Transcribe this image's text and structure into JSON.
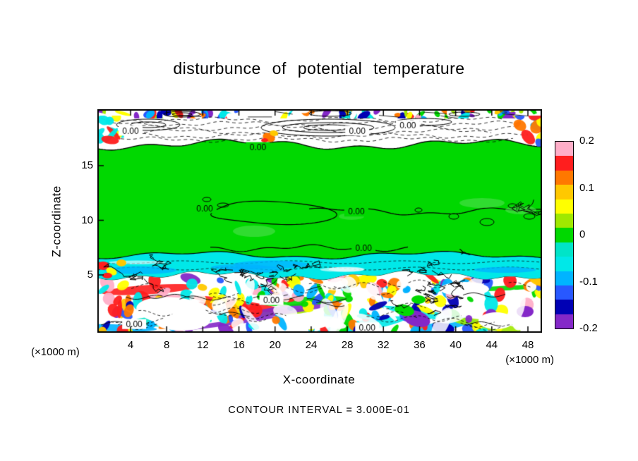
{
  "title": "disturbunce of potential temperature",
  "axes": {
    "x": {
      "label": "X-coordinate",
      "unit": "(×1000 m)",
      "ticks": [
        4,
        8,
        12,
        16,
        20,
        24,
        28,
        32,
        36,
        40,
        44,
        48
      ]
    },
    "z": {
      "label": "Z-coordinate",
      "unit": "(×1000 m)",
      "ticks": [
        15,
        10,
        5
      ]
    }
  },
  "colorbar": {
    "labels": [
      "0.2",
      "0.1",
      "0",
      "-0.1",
      "-0.2"
    ],
    "colors": [
      "#ffaec8",
      "#ff1e1e",
      "#ff7800",
      "#ffc800",
      "#ffff00",
      "#a0e800",
      "#00d800",
      "#00e4c8",
      "#00e8e8",
      "#00b4ff",
      "#2858ff",
      "#0000b4",
      "#8428c8"
    ]
  },
  "contour_note": "CONTOUR INTERVAL = 3.000E-01",
  "contour": {
    "zero_label": "0.00",
    "interval": 0.3
  },
  "chart_data": {
    "type": "heatmap",
    "title": "disturbunce of potential temperature",
    "xlabel": "X-coordinate (×1000 m)",
    "ylabel": "Z-coordinate (×1000 m)",
    "xlim": [
      0,
      50
    ],
    "zlim": [
      0,
      20.3
    ],
    "x_ticks": [
      4,
      8,
      12,
      16,
      20,
      24,
      28,
      32,
      36,
      40,
      44,
      48
    ],
    "z_ticks": [
      5,
      10,
      15
    ],
    "value_name": "potential temperature disturbance",
    "value_range": [
      -0.2,
      0.2
    ],
    "contour_interval": 0.3,
    "colorbar_levels": [
      -0.2,
      -0.1,
      0,
      0.1,
      0.2
    ],
    "regions": [
      {
        "z_range": [
          6.7,
          16.9
        ],
        "value": 0.0,
        "description": "uniform near-zero interior (green) crossed by labelled 0.00 contours"
      },
      {
        "z_range": [
          5.0,
          6.7
        ],
        "value": -0.07,
        "description": "weakly negative (cyan) band spanning the full x range"
      },
      {
        "z_range": [
          0.0,
          5.0
        ],
        "value_range": [
          -0.2,
          0.2
        ],
        "description": "turbulent lower boundary layer with alternating positive/negative cells and dense contour packets"
      },
      {
        "z_range": [
          16.9,
          19.4
        ],
        "value_range": [
          -0.1,
          0.1
        ],
        "description": "wavy upper band with dashed negative contours and closed 0.00 loops"
      },
      {
        "z_range": [
          19.4,
          20.3
        ],
        "value_range": [
          -0.2,
          0.2
        ],
        "description": "thin turbulent strip at the model top"
      }
    ],
    "zero_contour_labels_xz": [
      [
        4.0,
        18.2,
        "white"
      ],
      [
        29.1,
        18.2,
        "white"
      ],
      [
        34.7,
        18.7,
        "white"
      ],
      [
        18.1,
        16.7,
        "green"
      ],
      [
        12.2,
        11.1,
        "green"
      ],
      [
        29.0,
        10.8,
        "green"
      ],
      [
        29.8,
        7.5,
        "green"
      ],
      [
        4.4,
        0.5,
        "white"
      ],
      [
        19.6,
        2.7,
        "white"
      ],
      [
        30.2,
        0.2,
        "white"
      ]
    ]
  }
}
